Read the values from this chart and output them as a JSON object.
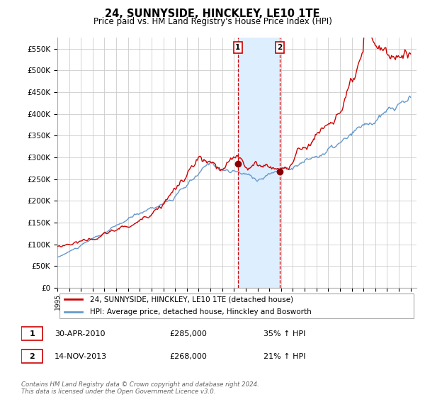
{
  "title": "24, SUNNYSIDE, HINCKLEY, LE10 1TE",
  "subtitle": "Price paid vs. HM Land Registry's House Price Index (HPI)",
  "line1_label": "24, SUNNYSIDE, HINCKLEY, LE10 1TE (detached house)",
  "line2_label": "HPI: Average price, detached house, Hinckley and Bosworth",
  "line1_color": "#cc0000",
  "line2_color": "#6699cc",
  "marker_color": "#880000",
  "vline_color": "#cc0000",
  "shade_color": "#ddeeff",
  "purchase1_date": "30-APR-2010",
  "purchase1_price": 285000,
  "purchase1_pct": "35%",
  "purchase1_year": 2010.33,
  "purchase2_date": "14-NOV-2013",
  "purchase2_price": 268000,
  "purchase2_pct": "21%",
  "purchase2_year": 2013.88,
  "footer": "Contains HM Land Registry data © Crown copyright and database right 2024.\nThis data is licensed under the Open Government Licence v3.0.",
  "ylim": [
    0,
    575000
  ],
  "yticks": [
    0,
    50000,
    100000,
    150000,
    200000,
    250000,
    300000,
    350000,
    400000,
    450000,
    500000,
    550000
  ],
  "background_color": "#ffffff",
  "grid_color": "#cccccc",
  "xlim_start": 1995,
  "xlim_end": 2025.5
}
